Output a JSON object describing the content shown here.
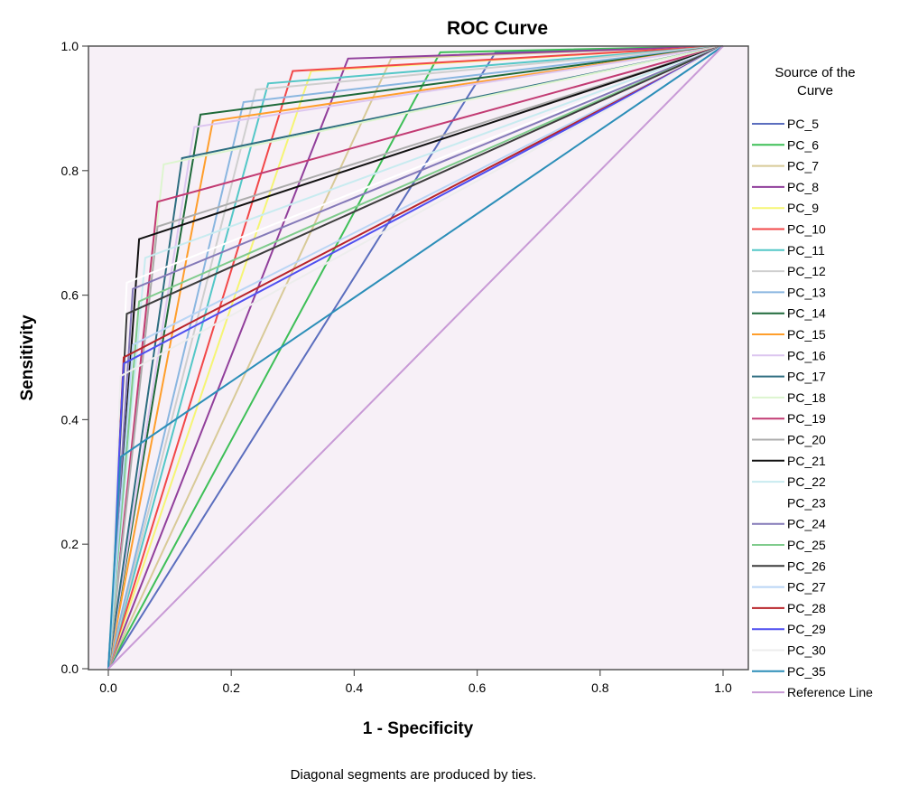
{
  "chart_data": {
    "type": "line",
    "title": "ROC Curve",
    "xlabel": "1 - Specificity",
    "ylabel": "Sensitivity",
    "xlim": [
      0,
      1
    ],
    "ylim": [
      0,
      1
    ],
    "xticks": [
      "0.0",
      "0.2",
      "0.4",
      "0.6",
      "0.8",
      "1.0"
    ],
    "yticks": [
      "0.0",
      "0.2",
      "0.4",
      "0.6",
      "0.8",
      "1.0"
    ],
    "grid": false,
    "plot_background": "#F7F0F7",
    "legend_title": "Source of the Curve",
    "legend_placement": "right",
    "footnote": "Diagonal segments are produced by ties.",
    "series": [
      {
        "name": "PC_5",
        "color": "#5B6EBE",
        "x": [
          0,
          0.63,
          1
        ],
        "y": [
          0,
          0.99,
          1
        ]
      },
      {
        "name": "PC_6",
        "color": "#3DBF57",
        "x": [
          0,
          0.54,
          1
        ],
        "y": [
          0,
          0.99,
          1
        ]
      },
      {
        "name": "PC_7",
        "color": "#D8CA98",
        "x": [
          0,
          0.46,
          1
        ],
        "y": [
          0,
          0.98,
          1
        ]
      },
      {
        "name": "PC_8",
        "color": "#913F9B",
        "x": [
          0,
          0.39,
          1
        ],
        "y": [
          0,
          0.98,
          1
        ]
      },
      {
        "name": "PC_9",
        "color": "#F5F574",
        "x": [
          0,
          0.33,
          1
        ],
        "y": [
          0,
          0.96,
          1
        ]
      },
      {
        "name": "PC_10",
        "color": "#F24748",
        "x": [
          0,
          0.3,
          1
        ],
        "y": [
          0,
          0.96,
          1
        ]
      },
      {
        "name": "PC_11",
        "color": "#53C7C7",
        "x": [
          0,
          0.26,
          1
        ],
        "y": [
          0,
          0.94,
          1
        ]
      },
      {
        "name": "PC_12",
        "color": "#CFCFCF",
        "x": [
          0,
          0.24,
          1
        ],
        "y": [
          0,
          0.93,
          1
        ]
      },
      {
        "name": "PC_13",
        "color": "#8AB6E0",
        "x": [
          0,
          0.22,
          1
        ],
        "y": [
          0,
          0.91,
          1
        ]
      },
      {
        "name": "PC_14",
        "color": "#1F6A3A",
        "x": [
          0,
          0.15,
          1
        ],
        "y": [
          0,
          0.89,
          1
        ]
      },
      {
        "name": "PC_15",
        "color": "#FF9E2B",
        "x": [
          0,
          0.17,
          1
        ],
        "y": [
          0,
          0.88,
          1
        ]
      },
      {
        "name": "PC_16",
        "color": "#DCC6F0",
        "x": [
          0,
          0.14,
          1
        ],
        "y": [
          0,
          0.87,
          1
        ]
      },
      {
        "name": "PC_17",
        "color": "#2D6D80",
        "x": [
          0,
          0.12,
          1
        ],
        "y": [
          0,
          0.82,
          1
        ]
      },
      {
        "name": "PC_18",
        "color": "#DDF5CF",
        "x": [
          0,
          0.09,
          1
        ],
        "y": [
          0,
          0.81,
          1
        ]
      },
      {
        "name": "PC_19",
        "color": "#C23B73",
        "x": [
          0,
          0.08,
          1
        ],
        "y": [
          0,
          0.75,
          1
        ]
      },
      {
        "name": "PC_20",
        "color": "#ACACAC",
        "x": [
          0,
          0.08,
          1
        ],
        "y": [
          0,
          0.71,
          1
        ]
      },
      {
        "name": "PC_21",
        "color": "#111111",
        "x": [
          0,
          0.05,
          1
        ],
        "y": [
          0,
          0.69,
          1
        ]
      },
      {
        "name": "PC_22",
        "color": "#C8EBF0",
        "x": [
          0,
          0.06,
          1
        ],
        "y": [
          0,
          0.66,
          1
        ]
      },
      {
        "name": "PC_23",
        "color": "#FFFFFF",
        "x": [
          0,
          0.03,
          1
        ],
        "y": [
          0,
          0.62,
          1
        ]
      },
      {
        "name": "PC_24",
        "color": "#8479B8",
        "x": [
          0,
          0.04,
          1
        ],
        "y": [
          0,
          0.61,
          1
        ]
      },
      {
        "name": "PC_25",
        "color": "#7FCB8C",
        "x": [
          0,
          0.05,
          1
        ],
        "y": [
          0,
          0.59,
          1
        ]
      },
      {
        "name": "PC_26",
        "color": "#3D3D3D",
        "x": [
          0,
          0.03,
          1
        ],
        "y": [
          0,
          0.57,
          1
        ]
      },
      {
        "name": "PC_27",
        "color": "#B9D5F5",
        "x": [
          0,
          0.04,
          1
        ],
        "y": [
          0,
          0.52,
          1
        ]
      },
      {
        "name": "PC_28",
        "color": "#B8242A",
        "x": [
          0,
          0.025,
          1
        ],
        "y": [
          0,
          0.5,
          1
        ]
      },
      {
        "name": "PC_29",
        "color": "#4F4FF0",
        "x": [
          0,
          0.025,
          1
        ],
        "y": [
          0,
          0.49,
          1
        ]
      },
      {
        "name": "PC_30",
        "color": "#EDEDED",
        "x": [
          0,
          0.02,
          1
        ],
        "y": [
          0,
          0.47,
          1
        ]
      },
      {
        "name": "PC_35",
        "color": "#2B8EB8",
        "x": [
          0,
          0.02,
          1
        ],
        "y": [
          0,
          0.34,
          1
        ]
      },
      {
        "name": "Reference Line",
        "color": "#C89AD6",
        "x": [
          0,
          1
        ],
        "y": [
          0,
          1
        ]
      }
    ]
  }
}
